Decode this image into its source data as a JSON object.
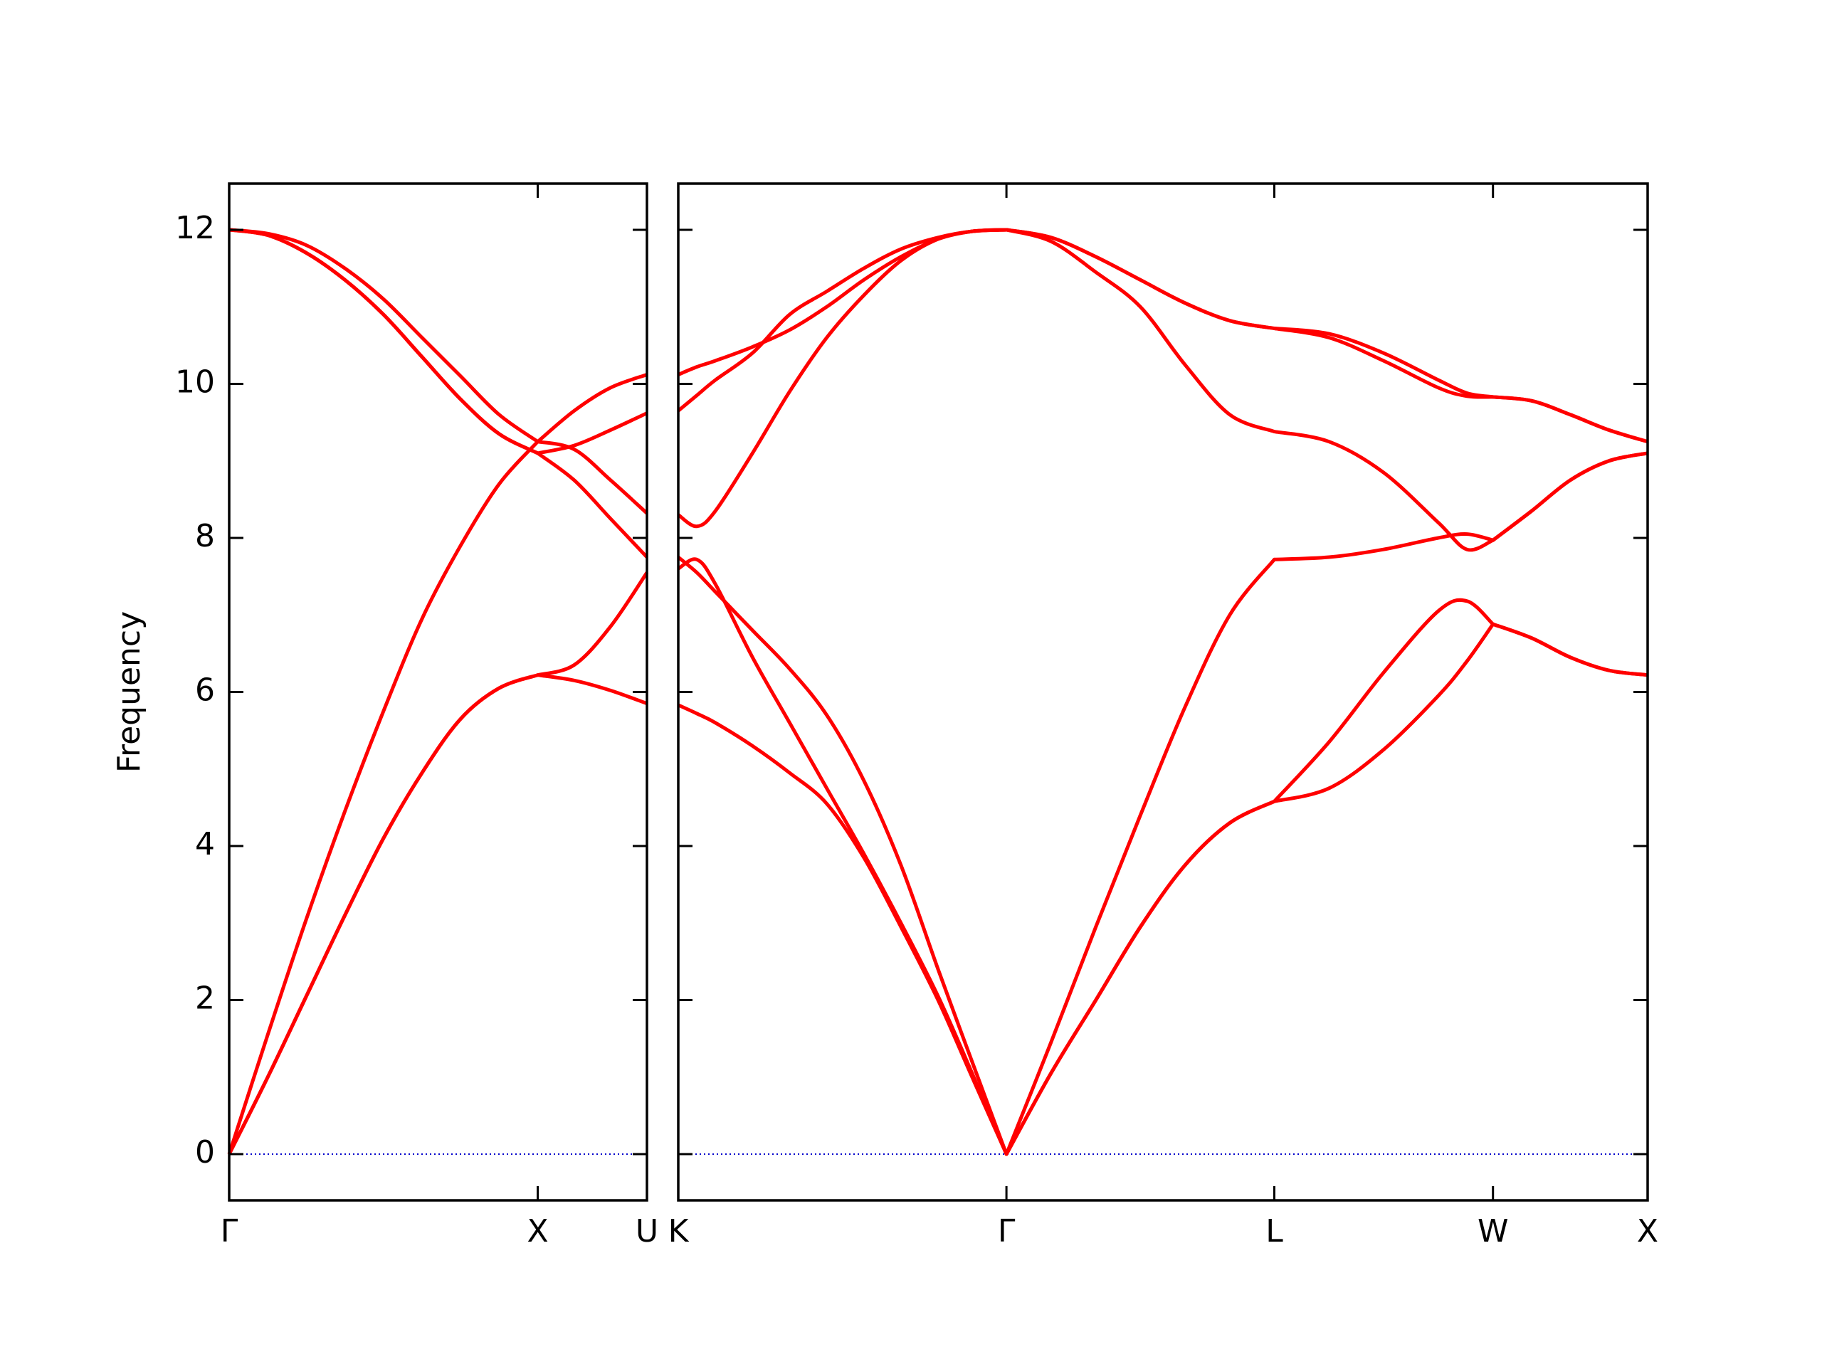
{
  "chart_data": [
    {
      "type": "line",
      "ylabel": "Frequency",
      "x": [
        0,
        0.125,
        0.25,
        0.375,
        0.5,
        0.625,
        0.75,
        0.875,
        1.0,
        1.118,
        1.236,
        1.354
      ],
      "series": [
        {
          "color": "#ff0000",
          "values": [
            0,
            1.0,
            2.05,
            3.1,
            4.1,
            4.95,
            5.65,
            6.05,
            6.22,
            6.15,
            6.02,
            5.85
          ]
        },
        {
          "color": "#ff0000",
          "values": [
            0,
            1.0,
            2.05,
            3.1,
            4.1,
            4.95,
            5.65,
            6.05,
            6.22,
            6.35,
            6.85,
            7.55
          ]
        },
        {
          "color": "#ff0000",
          "values": [
            0,
            1.55,
            3.05,
            4.45,
            5.75,
            6.95,
            7.9,
            8.7,
            9.25,
            9.65,
            9.95,
            10.12
          ]
        },
        {
          "color": "#ff0000",
          "values": [
            12,
            11.95,
            11.8,
            11.5,
            11.1,
            10.6,
            10.1,
            9.6,
            9.25,
            9.15,
            8.75,
            8.32
          ]
        },
        {
          "color": "#ff0000",
          "values": [
            12,
            11.93,
            11.7,
            11.35,
            10.9,
            10.35,
            9.8,
            9.35,
            9.1,
            9.2,
            9.4,
            9.62
          ]
        },
        {
          "color": "#ff0000",
          "values": [
            12,
            11.93,
            11.7,
            11.35,
            10.9,
            10.35,
            9.8,
            9.35,
            9.1,
            8.75,
            8.25,
            7.75
          ]
        }
      ],
      "xlim": [
        0,
        1.354
      ],
      "xticks": [
        {
          "value": 0,
          "label": "Γ"
        },
        {
          "value": 1.0,
          "label": "X"
        },
        {
          "value": 1.354,
          "label": "U"
        }
      ],
      "ylim": [
        -0.6,
        12.6
      ],
      "yticks": [
        0,
        2,
        4,
        6,
        8,
        10,
        12
      ],
      "ytick_labels": true,
      "hline": 0,
      "hline_color": "#0000cc"
    },
    {
      "type": "line",
      "x": [
        0,
        0.06,
        0.12,
        0.24,
        0.36,
        0.48,
        0.6,
        0.72,
        0.84,
        0.95,
        1.061,
        1.205,
        1.35,
        1.494,
        1.638,
        1.783,
        1.927,
        2.104,
        2.28,
        2.457,
        2.55,
        2.634,
        2.759,
        2.884,
        3.009,
        3.134
      ],
      "series": [
        {
          "color": "#ff0000",
          "values": [
            5.83,
            5.72,
            5.6,
            5.3,
            4.95,
            4.55,
            3.85,
            2.95,
            2.0,
            1.0,
            0,
            1.05,
            2.0,
            2.95,
            3.75,
            4.3,
            4.58,
            4.75,
            5.25,
            5.95,
            6.4,
            6.88,
            6.7,
            6.45,
            6.28,
            6.22
          ]
        },
        {
          "color": "#ff0000",
          "values": [
            7.6,
            7.72,
            7.4,
            6.45,
            5.6,
            4.75,
            3.9,
            3.0,
            2.05,
            1.05,
            0,
            1.05,
            2.0,
            2.95,
            3.75,
            4.3,
            4.58,
            5.35,
            6.25,
            7.05,
            7.18,
            6.88,
            6.7,
            6.45,
            6.28,
            6.22
          ]
        },
        {
          "color": "#ff0000",
          "values": [
            7.75,
            7.55,
            7.3,
            6.8,
            6.3,
            5.7,
            4.85,
            3.75,
            2.4,
            1.2,
            0,
            1.45,
            2.95,
            4.4,
            5.8,
            7.0,
            7.72,
            7.75,
            7.85,
            8.0,
            8.05,
            7.97,
            8.35,
            8.75,
            9.0,
            9.1
          ]
        },
        {
          "color": "#ff0000",
          "values": [
            8.3,
            8.15,
            8.35,
            9.1,
            9.9,
            10.6,
            11.15,
            11.6,
            11.88,
            11.98,
            12,
            11.85,
            11.45,
            11.0,
            10.25,
            9.6,
            9.38,
            9.25,
            8.85,
            8.2,
            7.85,
            7.97,
            8.35,
            8.75,
            9.0,
            9.1
          ]
        },
        {
          "color": "#ff0000",
          "values": [
            9.65,
            9.85,
            10.05,
            10.4,
            10.9,
            11.2,
            11.5,
            11.75,
            11.9,
            11.98,
            12,
            11.9,
            11.65,
            11.35,
            11.05,
            10.82,
            10.72,
            10.6,
            10.3,
            9.95,
            9.84,
            9.83,
            9.78,
            9.6,
            9.4,
            9.25
          ]
        },
        {
          "color": "#ff0000",
          "values": [
            10.12,
            10.22,
            10.3,
            10.48,
            10.7,
            11.0,
            11.35,
            11.65,
            11.88,
            11.98,
            12,
            11.9,
            11.65,
            11.35,
            11.05,
            10.82,
            10.72,
            10.65,
            10.4,
            10.05,
            9.88,
            9.83,
            9.78,
            9.6,
            9.4,
            9.25
          ]
        }
      ],
      "xlim": [
        0,
        3.134
      ],
      "xticks": [
        {
          "value": 0,
          "label": "K"
        },
        {
          "value": 1.061,
          "label": "Γ"
        },
        {
          "value": 1.927,
          "label": "L"
        },
        {
          "value": 2.634,
          "label": "W"
        },
        {
          "value": 3.134,
          "label": "X"
        }
      ],
      "ylim": [
        -0.6,
        12.6
      ],
      "yticks": [
        0,
        2,
        4,
        6,
        8,
        10,
        12
      ],
      "ytick_labels": false,
      "hline": 0,
      "hline_color": "#0000cc"
    }
  ]
}
